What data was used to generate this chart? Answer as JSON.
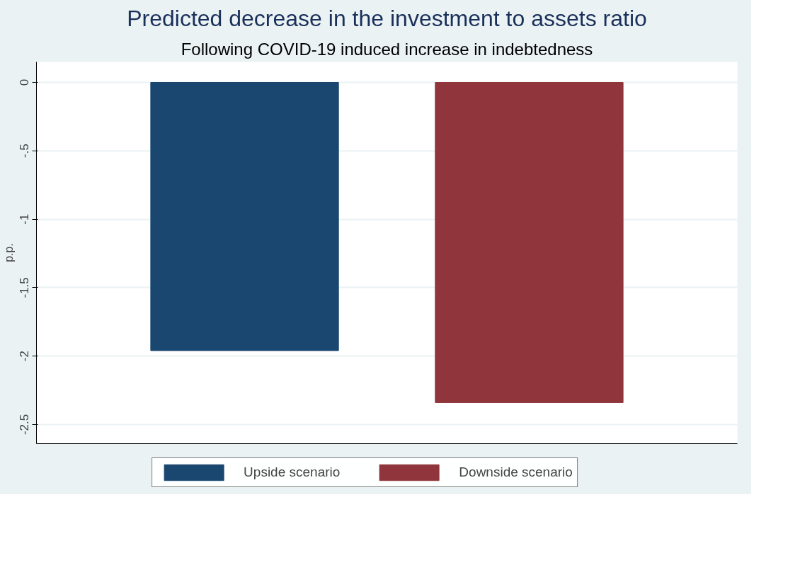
{
  "chart_data": {
    "type": "bar",
    "title": "Predicted decrease in the investment to assets ratio",
    "subtitle": "Following COVID-19 induced increase in indebtedness",
    "ylabel": "p.p.",
    "categories": [
      null
    ],
    "series": [
      {
        "name": "Upside scenario",
        "color": "#1a476f",
        "values": [
          -1.96
        ]
      },
      {
        "name": "Downside scenario",
        "color": "#90353b",
        "values": [
          -2.34
        ]
      }
    ],
    "ylim": [
      -2.64,
      0.15
    ],
    "yticks": [
      {
        "value": -2.5,
        "label": "-2.5"
      },
      {
        "value": -2,
        "label": "-2"
      },
      {
        "value": -1.5,
        "label": "-1.5"
      },
      {
        "value": -1,
        "label": "-1"
      },
      {
        "value": -0.5,
        "label": "-.5"
      },
      {
        "value": 0,
        "label": "0"
      }
    ],
    "grid": "y",
    "legend": "bottom"
  }
}
